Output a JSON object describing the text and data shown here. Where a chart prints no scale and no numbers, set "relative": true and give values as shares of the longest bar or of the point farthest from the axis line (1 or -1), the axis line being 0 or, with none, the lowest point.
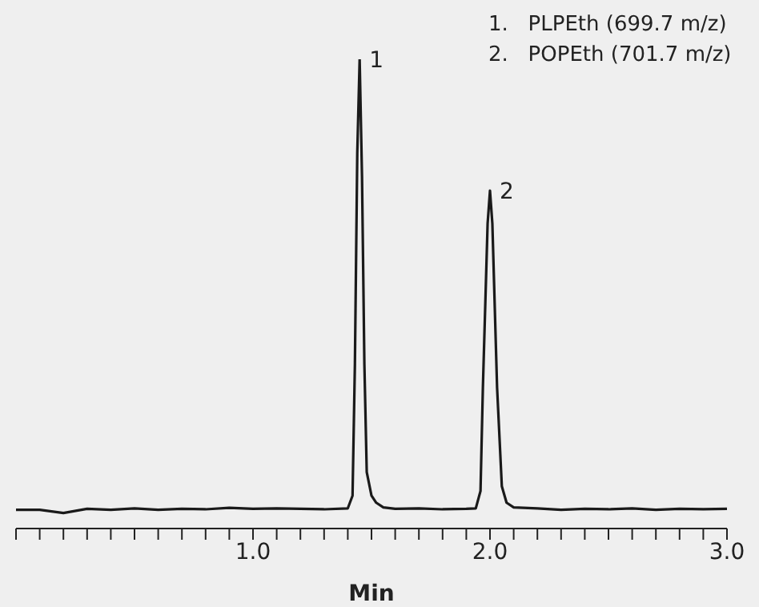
{
  "chart_data": {
    "type": "line",
    "relative": true,
    "xlabel": "Min",
    "xlim": [
      0,
      3
    ],
    "xticks": [
      {
        "value": 0,
        "label": null
      },
      {
        "value": 0.1,
        "label": null
      },
      {
        "value": 0.2,
        "label": null
      },
      {
        "value": 0.3,
        "label": null
      },
      {
        "value": 0.4,
        "label": null
      },
      {
        "value": 0.5,
        "label": null
      },
      {
        "value": 0.6,
        "label": null
      },
      {
        "value": 0.7,
        "label": null
      },
      {
        "value": 0.8,
        "label": null
      },
      {
        "value": 0.9,
        "label": null
      },
      {
        "value": 1,
        "label": "1.0"
      },
      {
        "value": 1.1,
        "label": null
      },
      {
        "value": 1.2,
        "label": null
      },
      {
        "value": 1.3,
        "label": null
      },
      {
        "value": 1.4,
        "label": null
      },
      {
        "value": 1.5,
        "label": null
      },
      {
        "value": 1.6,
        "label": null
      },
      {
        "value": 1.7,
        "label": null
      },
      {
        "value": 1.8,
        "label": null
      },
      {
        "value": 1.9,
        "label": null
      },
      {
        "value": 2,
        "label": "2.0"
      },
      {
        "value": 2.1,
        "label": null
      },
      {
        "value": 2.2,
        "label": null
      },
      {
        "value": 2.3,
        "label": null
      },
      {
        "value": 2.4,
        "label": null
      },
      {
        "value": 2.5,
        "label": null
      },
      {
        "value": 2.6,
        "label": null
      },
      {
        "value": 2.7,
        "label": null
      },
      {
        "value": 2.8,
        "label": null
      },
      {
        "value": 2.9,
        "label": null
      },
      {
        "value": 3,
        "label": "3.0"
      }
    ],
    "x": [
      0,
      0.1,
      0.2,
      0.3,
      0.4,
      0.5,
      0.6,
      0.7,
      0.8,
      0.9,
      1.0,
      1.1,
      1.2,
      1.3,
      1.4,
      1.42,
      1.43,
      1.44,
      1.45,
      1.46,
      1.47,
      1.48,
      1.5,
      1.52,
      1.55,
      1.6,
      1.7,
      1.8,
      1.9,
      1.94,
      1.96,
      1.97,
      1.99,
      2.0,
      2.01,
      2.03,
      2.05,
      2.07,
      2.1,
      2.2,
      2.3,
      2.4,
      2.5,
      2.6,
      2.7,
      2.8,
      2.9,
      3.0
    ],
    "series": [
      {
        "color": "#1a1a1a",
        "values": [
          0.04,
          0.04,
          0.033,
          0.042,
          0.04,
          0.043,
          0.04,
          0.042,
          0.041,
          0.044,
          0.042,
          0.043,
          0.042,
          0.041,
          0.043,
          0.07,
          0.35,
          0.8,
          1.0,
          0.75,
          0.35,
          0.12,
          0.07,
          0.055,
          0.045,
          0.042,
          0.043,
          0.041,
          0.042,
          0.043,
          0.08,
          0.3,
          0.65,
          0.72,
          0.65,
          0.3,
          0.09,
          0.055,
          0.045,
          0.043,
          0.04,
          0.042,
          0.041,
          0.043,
          0.04,
          0.042,
          0.041,
          0.042
        ]
      }
    ],
    "marker": "none",
    "line_style": "solid",
    "annotations": [
      {
        "text": "1",
        "x": 1.45,
        "y": 1.0
      },
      {
        "text": "2",
        "x": 2.0,
        "y": 0.72
      },
      "1.   PLPEth (699.7 m/z)",
      "2.   POPEth (701.7 m/z)"
    ]
  }
}
